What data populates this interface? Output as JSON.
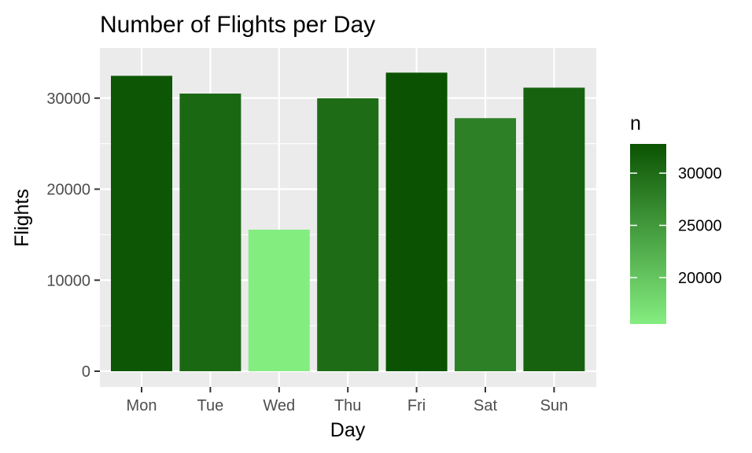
{
  "chart_data": {
    "type": "bar",
    "title": "Number of Flights per Day",
    "xlabel": "Day",
    "ylabel": "Flights",
    "categories": [
      "Mon",
      "Tue",
      "Wed",
      "Thu",
      "Fri",
      "Sat",
      "Sun"
    ],
    "values": [
      32450,
      30500,
      15550,
      29980,
      32800,
      27800,
      31150
    ],
    "ylim": [
      0,
      34300
    ],
    "yticks": [
      0,
      10000,
      20000,
      30000
    ],
    "grid": true,
    "legend": {
      "title": "n",
      "placement": "right",
      "ticks": [
        20000,
        25000,
        30000
      ],
      "range": [
        15550,
        32800
      ],
      "low_color": "#84ED80",
      "high_color": "#0B5302"
    },
    "panel_color": "#EBEBEB",
    "grid_color": "#FFFFFF"
  }
}
